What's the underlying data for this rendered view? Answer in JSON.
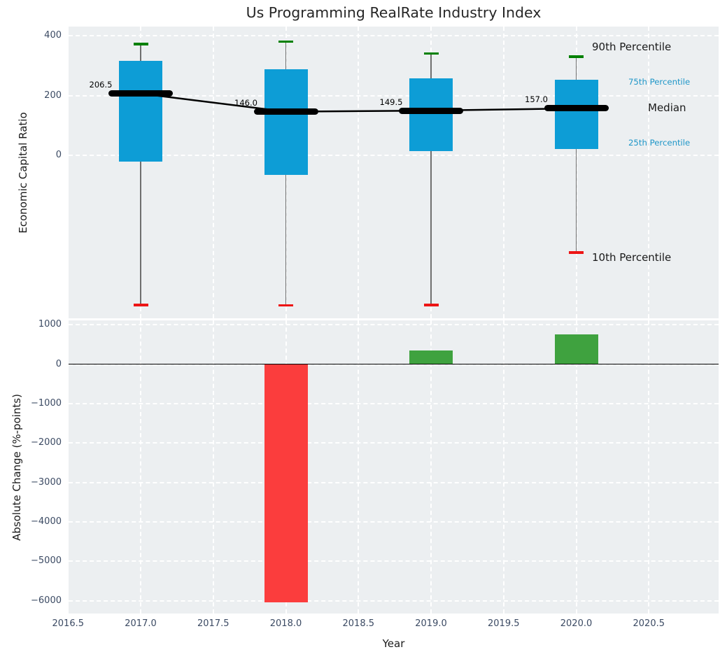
{
  "title": "Us Programming RealRate Industry Index",
  "annotations": {
    "p90": "90th Percentile",
    "p75": "75th Percentile",
    "median": "Median",
    "p25": "25th Percentile",
    "p10": "10th Percentile"
  },
  "colors": {
    "box_fill": "#0d9dd6",
    "median_line": "#000000",
    "p90_cap": "#008000",
    "p10_cap": "#ed1515",
    "whisker": "#6f6f6f",
    "bar_positive": "#3fa23f",
    "bar_negative": "#fb3d3d",
    "panel_background": "#eceff1",
    "gridline": "#ffffff",
    "tick_label": "#3b4a63",
    "percentile_label_blue": "#1e96c8",
    "text": "#1a1a1a"
  },
  "chart_data": [
    {
      "type": "box",
      "title": "Us Programming RealRate Industry Index",
      "ylabel": "Economic Capital Ratio",
      "x": [
        2017,
        2018,
        2019,
        2020
      ],
      "series": [
        {
          "name": "90th Percentile",
          "values": [
            372,
            380,
            340,
            330
          ]
        },
        {
          "name": "75th Percentile",
          "values": [
            315,
            287,
            258,
            253
          ]
        },
        {
          "name": "Median",
          "values": [
            206.5,
            146.0,
            149.5,
            157.0
          ]
        },
        {
          "name": "25th Percentile",
          "values": [
            -20,
            -65,
            15,
            20
          ]
        },
        {
          "name": "10th Percentile",
          "values": [
            -500,
            -502,
            -500,
            -325
          ]
        }
      ],
      "median_labels": [
        "206.5",
        "146.0",
        "149.5",
        "157.0"
      ],
      "yticks": [
        400,
        200,
        0
      ],
      "ytick_labels": [
        "400",
        "200",
        "0"
      ],
      "ylim": [
        -550,
        430
      ],
      "grid": true,
      "legend_position": "right-annotations"
    },
    {
      "type": "bar",
      "ylabel": "Absolute Change (%-points)",
      "xlabel": "Year",
      "x": [
        2018,
        2019,
        2020
      ],
      "values": [
        -6050,
        350,
        750
      ],
      "bar_colors": [
        "negative",
        "positive",
        "positive"
      ],
      "yticks": [
        1000,
        0,
        -1000,
        -2000,
        -3000,
        -4000,
        -5000,
        -6000
      ],
      "ytick_labels": [
        "1000",
        "0",
        "−1000",
        "−2000",
        "−3000",
        "−4000",
        "−5000",
        "−6000"
      ],
      "xticks": [
        2016.5,
        2017.0,
        2017.5,
        2018.0,
        2018.5,
        2019.0,
        2019.5,
        2020.0,
        2020.5
      ],
      "xtick_labels": [
        "2016.5",
        "2017.0",
        "2017.5",
        "2018.0",
        "2018.5",
        "2019.0",
        "2019.5",
        "2020.0",
        "2020.5"
      ],
      "xlim": [
        2016.5,
        2020.98
      ],
      "ylim": [
        -6350,
        1110
      ],
      "grid": true
    }
  ]
}
